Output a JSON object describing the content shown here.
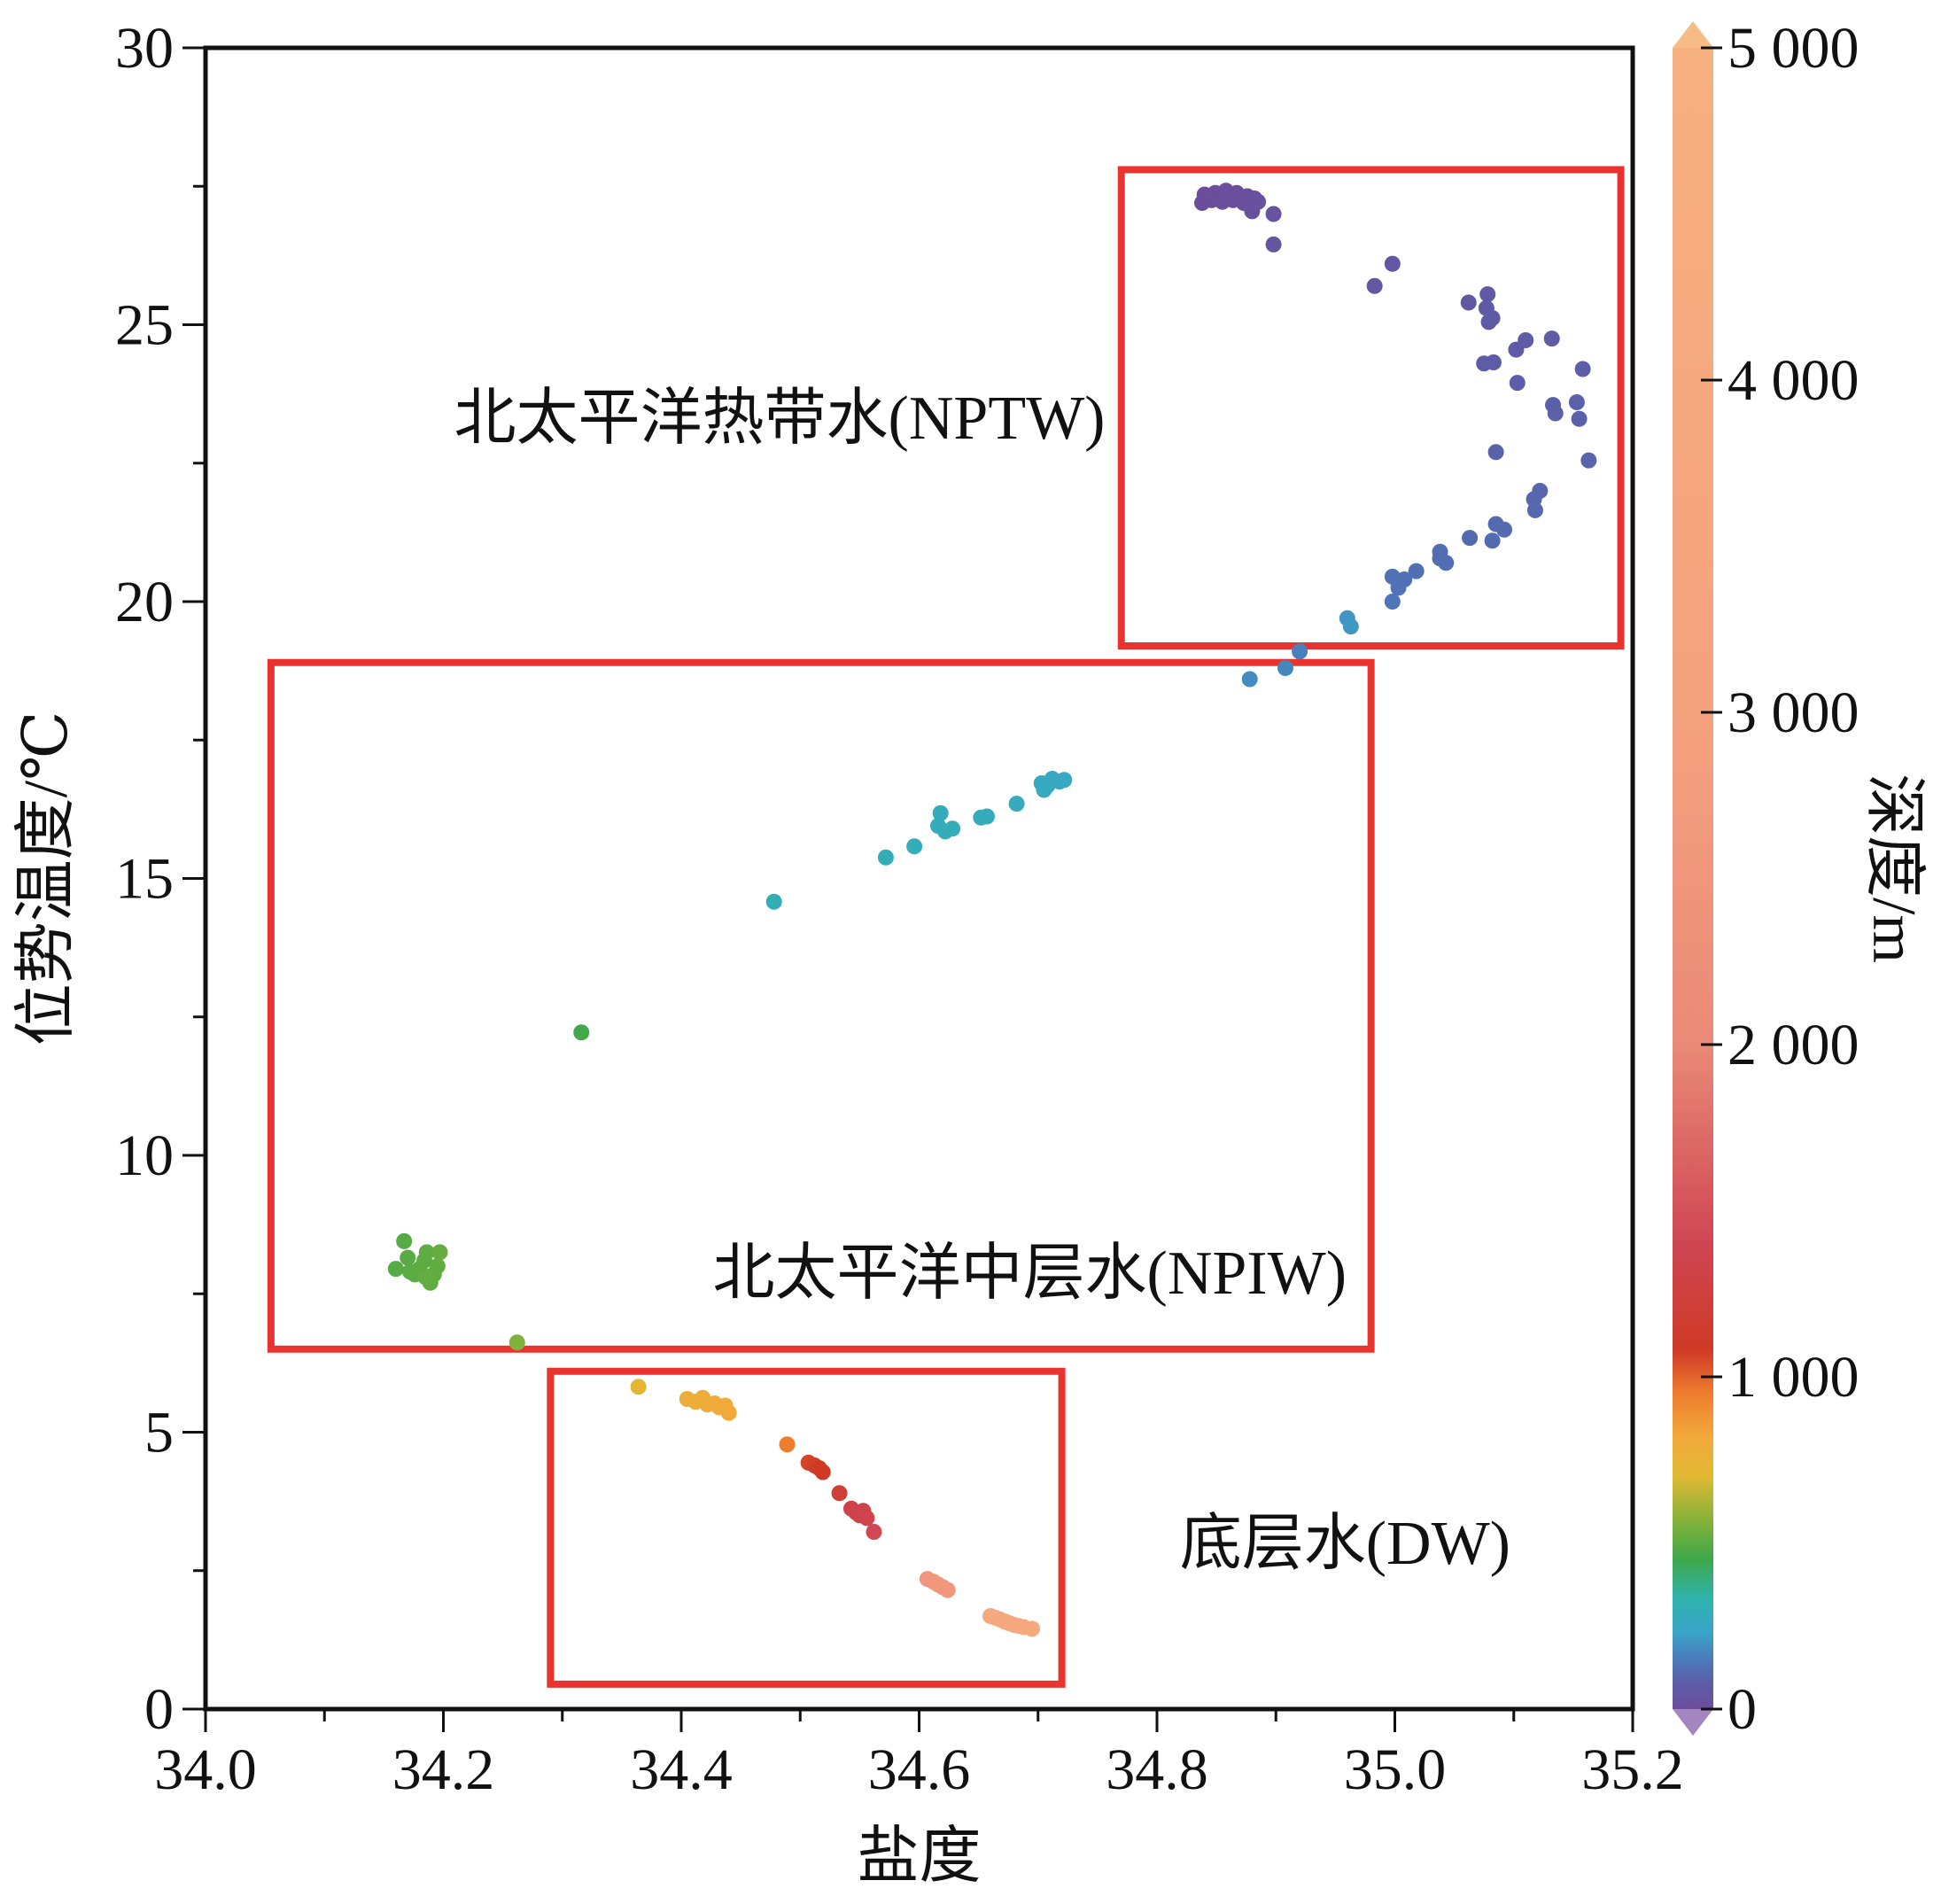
{
  "chart_data": {
    "type": "scatter",
    "xlabel": "盐度",
    "ylabel": "位势温度/℃",
    "colorbar_label": "深度/m",
    "xlim": [
      34.0,
      35.2
    ],
    "ylim": [
      0,
      30
    ],
    "x_ticks": [
      "34.0",
      "34.2",
      "34.4",
      "34.6",
      "34.8",
      "35.0",
      "35.2"
    ],
    "y_ticks": [
      "0",
      "5",
      "10",
      "15",
      "20",
      "25",
      "30"
    ],
    "colorbar": {
      "range": [
        0,
        5000
      ],
      "ticks": [
        "0",
        "1 000",
        "2 000",
        "3 000",
        "4 000",
        "5 000"
      ],
      "tick_values": [
        0,
        1000,
        2000,
        3000,
        4000,
        5000
      ]
    },
    "regions": [
      {
        "label": "北太平洋热带水(NPTW)",
        "salinity": [
          34.77,
          35.19
        ],
        "temperature": [
          19.2,
          27.8
        ]
      },
      {
        "label": "北太平洋中层水(NPIW)",
        "salinity": [
          34.055,
          34.98
        ],
        "temperature": [
          6.5,
          18.9
        ]
      },
      {
        "label": "底层水(DW)",
        "salinity": [
          34.29,
          34.72
        ],
        "temperature": [
          0.45,
          6.1
        ]
      }
    ],
    "points": [
      {
        "s": 34.838,
        "t": 27.2,
        "d": 3
      },
      {
        "s": 34.84,
        "t": 27.35,
        "d": 4
      },
      {
        "s": 34.843,
        "t": 27.3,
        "d": 5
      },
      {
        "s": 34.846,
        "t": 27.25,
        "d": 6
      },
      {
        "s": 34.849,
        "t": 27.38,
        "d": 7
      },
      {
        "s": 34.852,
        "t": 27.28,
        "d": 8
      },
      {
        "s": 34.855,
        "t": 27.22,
        "d": 9
      },
      {
        "s": 34.858,
        "t": 27.42,
        "d": 10
      },
      {
        "s": 34.861,
        "t": 27.35,
        "d": 11
      },
      {
        "s": 34.864,
        "t": 27.25,
        "d": 12
      },
      {
        "s": 34.867,
        "t": 27.38,
        "d": 13
      },
      {
        "s": 34.87,
        "t": 27.3,
        "d": 14
      },
      {
        "s": 34.873,
        "t": 27.2,
        "d": 15
      },
      {
        "s": 34.876,
        "t": 27.32,
        "d": 16
      },
      {
        "s": 34.879,
        "t": 27.25,
        "d": 18
      },
      {
        "s": 34.882,
        "t": 27.28,
        "d": 20
      },
      {
        "s": 34.885,
        "t": 27.22,
        "d": 22
      },
      {
        "s": 34.88,
        "t": 27.05,
        "d": 25
      },
      {
        "s": 34.898,
        "t": 27.0,
        "d": 30
      },
      {
        "s": 34.898,
        "t": 26.45,
        "d": 38
      },
      {
        "s": 34.998,
        "t": 26.1,
        "d": 45
      },
      {
        "s": 34.983,
        "t": 25.7,
        "d": 50
      },
      {
        "s": 35.062,
        "t": 25.4,
        "d": 55
      },
      {
        "s": 35.078,
        "t": 25.55,
        "d": 58
      },
      {
        "s": 35.077,
        "t": 25.3,
        "d": 60
      },
      {
        "s": 35.079,
        "t": 25.05,
        "d": 62
      },
      {
        "s": 35.082,
        "t": 25.12,
        "d": 64
      },
      {
        "s": 35.102,
        "t": 24.55,
        "d": 68
      },
      {
        "s": 35.11,
        "t": 24.72,
        "d": 70
      },
      {
        "s": 35.132,
        "t": 24.75,
        "d": 72
      },
      {
        "s": 35.075,
        "t": 24.3,
        "d": 74
      },
      {
        "s": 35.083,
        "t": 24.32,
        "d": 76
      },
      {
        "s": 35.158,
        "t": 24.2,
        "d": 78
      },
      {
        "s": 35.103,
        "t": 23.95,
        "d": 80
      },
      {
        "s": 35.133,
        "t": 23.55,
        "d": 82
      },
      {
        "s": 35.135,
        "t": 23.4,
        "d": 84
      },
      {
        "s": 35.153,
        "t": 23.6,
        "d": 86
      },
      {
        "s": 35.155,
        "t": 23.3,
        "d": 88
      },
      {
        "s": 35.085,
        "t": 22.7,
        "d": 92
      },
      {
        "s": 35.163,
        "t": 22.55,
        "d": 95
      },
      {
        "s": 35.122,
        "t": 22.0,
        "d": 100
      },
      {
        "s": 35.117,
        "t": 21.85,
        "d": 102
      },
      {
        "s": 35.118,
        "t": 21.65,
        "d": 104
      },
      {
        "s": 35.085,
        "t": 21.4,
        "d": 106
      },
      {
        "s": 35.092,
        "t": 21.3,
        "d": 108
      },
      {
        "s": 35.063,
        "t": 21.15,
        "d": 110
      },
      {
        "s": 35.082,
        "t": 21.1,
        "d": 112
      },
      {
        "s": 35.038,
        "t": 20.9,
        "d": 115
      },
      {
        "s": 35.038,
        "t": 20.78,
        "d": 117
      },
      {
        "s": 35.043,
        "t": 20.7,
        "d": 119
      },
      {
        "s": 35.018,
        "t": 20.55,
        "d": 122
      },
      {
        "s": 34.998,
        "t": 20.45,
        "d": 125
      },
      {
        "s": 35.008,
        "t": 20.4,
        "d": 127
      },
      {
        "s": 35.003,
        "t": 20.25,
        "d": 130
      },
      {
        "s": 34.998,
        "t": 20.0,
        "d": 135
      },
      {
        "s": 34.96,
        "t": 19.7,
        "d": 200
      },
      {
        "s": 34.963,
        "t": 19.55,
        "d": 205
      },
      {
        "s": 34.92,
        "t": 19.1,
        "d": 160
      },
      {
        "s": 34.908,
        "t": 18.8,
        "d": 170
      },
      {
        "s": 34.878,
        "t": 18.6,
        "d": 180
      },
      {
        "s": 34.722,
        "t": 16.78,
        "d": 255
      },
      {
        "s": 34.718,
        "t": 16.75,
        "d": 258
      },
      {
        "s": 34.712,
        "t": 16.8,
        "d": 260
      },
      {
        "s": 34.708,
        "t": 16.68,
        "d": 262
      },
      {
        "s": 34.703,
        "t": 16.72,
        "d": 264
      },
      {
        "s": 34.705,
        "t": 16.6,
        "d": 266
      },
      {
        "s": 34.682,
        "t": 16.35,
        "d": 270
      },
      {
        "s": 34.657,
        "t": 16.12,
        "d": 274
      },
      {
        "s": 34.652,
        "t": 16.1,
        "d": 276
      },
      {
        "s": 34.618,
        "t": 16.18,
        "d": 280
      },
      {
        "s": 34.616,
        "t": 15.95,
        "d": 283
      },
      {
        "s": 34.622,
        "t": 15.85,
        "d": 286
      },
      {
        "s": 34.628,
        "t": 15.9,
        "d": 289
      },
      {
        "s": 34.596,
        "t": 15.58,
        "d": 292
      },
      {
        "s": 34.572,
        "t": 15.38,
        "d": 296
      },
      {
        "s": 34.478,
        "t": 14.58,
        "d": 300
      },
      {
        "s": 34.316,
        "t": 12.22,
        "d": 460
      },
      {
        "s": 34.16,
        "t": 7.95,
        "d": 490
      },
      {
        "s": 34.167,
        "t": 8.45,
        "d": 492
      },
      {
        "s": 34.17,
        "t": 8.15,
        "d": 494
      },
      {
        "s": 34.172,
        "t": 7.9,
        "d": 496
      },
      {
        "s": 34.176,
        "t": 7.85,
        "d": 498
      },
      {
        "s": 34.18,
        "t": 7.95,
        "d": 500
      },
      {
        "s": 34.184,
        "t": 8.1,
        "d": 502
      },
      {
        "s": 34.186,
        "t": 8.25,
        "d": 504
      },
      {
        "s": 34.189,
        "t": 7.7,
        "d": 506
      },
      {
        "s": 34.192,
        "t": 7.85,
        "d": 508
      },
      {
        "s": 34.195,
        "t": 8.0,
        "d": 510
      },
      {
        "s": 34.197,
        "t": 8.25,
        "d": 512
      },
      {
        "s": 34.185,
        "t": 7.8,
        "d": 514
      },
      {
        "s": 34.262,
        "t": 6.62,
        "d": 560
      },
      {
        "s": 34.364,
        "t": 5.82,
        "d": 720
      },
      {
        "s": 34.405,
        "t": 5.6,
        "d": 780
      },
      {
        "s": 34.412,
        "t": 5.55,
        "d": 785
      },
      {
        "s": 34.418,
        "t": 5.62,
        "d": 790
      },
      {
        "s": 34.422,
        "t": 5.5,
        "d": 795
      },
      {
        "s": 34.428,
        "t": 5.52,
        "d": 800
      },
      {
        "s": 34.432,
        "t": 5.45,
        "d": 805
      },
      {
        "s": 34.437,
        "t": 5.48,
        "d": 810
      },
      {
        "s": 34.44,
        "t": 5.35,
        "d": 815
      },
      {
        "s": 34.489,
        "t": 4.78,
        "d": 950
      },
      {
        "s": 34.507,
        "t": 4.45,
        "d": 1060
      },
      {
        "s": 34.512,
        "t": 4.4,
        "d": 1070
      },
      {
        "s": 34.516,
        "t": 4.35,
        "d": 1080
      },
      {
        "s": 34.519,
        "t": 4.28,
        "d": 1090
      },
      {
        "s": 34.533,
        "t": 3.9,
        "d": 1200
      },
      {
        "s": 34.543,
        "t": 3.62,
        "d": 1320
      },
      {
        "s": 34.547,
        "t": 3.55,
        "d": 1330
      },
      {
        "s": 34.55,
        "t": 3.5,
        "d": 1340
      },
      {
        "s": 34.553,
        "t": 3.58,
        "d": 1350
      },
      {
        "s": 34.556,
        "t": 3.45,
        "d": 1360
      },
      {
        "s": 34.562,
        "t": 3.2,
        "d": 1420
      },
      {
        "s": 34.607,
        "t": 2.35,
        "d": 2500
      },
      {
        "s": 34.612,
        "t": 2.3,
        "d": 2520
      },
      {
        "s": 34.616,
        "t": 2.25,
        "d": 2540
      },
      {
        "s": 34.62,
        "t": 2.2,
        "d": 2560
      },
      {
        "s": 34.624,
        "t": 2.15,
        "d": 2580
      },
      {
        "s": 34.66,
        "t": 1.68,
        "d": 3800
      },
      {
        "s": 34.664,
        "t": 1.65,
        "d": 3820
      },
      {
        "s": 34.668,
        "t": 1.62,
        "d": 3840
      },
      {
        "s": 34.672,
        "t": 1.58,
        "d": 3860
      },
      {
        "s": 34.676,
        "t": 1.55,
        "d": 3880
      },
      {
        "s": 34.68,
        "t": 1.52,
        "d": 3900
      },
      {
        "s": 34.684,
        "t": 1.5,
        "d": 3920
      },
      {
        "s": 34.688,
        "t": 1.48,
        "d": 3940
      },
      {
        "s": 34.695,
        "t": 1.45,
        "d": 3960
      }
    ]
  },
  "colors": {
    "region_box": "#e8332e",
    "axis": "#111111",
    "colorbar_stops": [
      {
        "v": 0,
        "c": "#6d4c9a"
      },
      {
        "v": 80,
        "c": "#5c5ea8"
      },
      {
        "v": 150,
        "c": "#4a7bbb"
      },
      {
        "v": 230,
        "c": "#3aa5c8"
      },
      {
        "v": 330,
        "c": "#2fb3ae"
      },
      {
        "v": 450,
        "c": "#3ea74b"
      },
      {
        "v": 560,
        "c": "#7fb23a"
      },
      {
        "v": 700,
        "c": "#e1b833"
      },
      {
        "v": 820,
        "c": "#f2a93a"
      },
      {
        "v": 950,
        "c": "#ee7d2e"
      },
      {
        "v": 1080,
        "c": "#cf3a26"
      },
      {
        "v": 1400,
        "c": "#cf4653"
      },
      {
        "v": 2000,
        "c": "#ea8a78"
      },
      {
        "v": 3000,
        "c": "#f5a27f"
      },
      {
        "v": 5000,
        "c": "#f7b07f"
      }
    ],
    "extend_low": "#a585c0",
    "extend_high": "#f7bc86"
  }
}
